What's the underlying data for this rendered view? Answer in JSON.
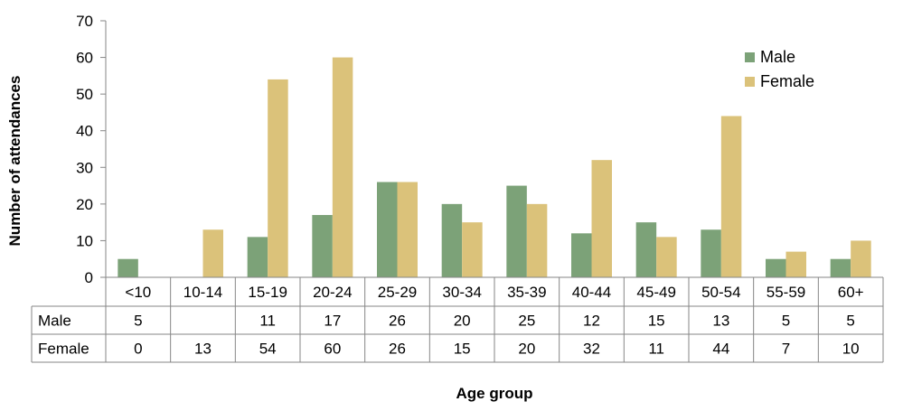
{
  "chart_data": {
    "type": "bar",
    "categories": [
      "<10",
      "10-14",
      "15-19",
      "20-24",
      "25-29",
      "30-34",
      "35-39",
      "40-44",
      "45-49",
      "50-54",
      "55-59",
      "60+"
    ],
    "series": [
      {
        "name": "Male",
        "values": [
          5,
          null,
          11,
          17,
          26,
          20,
          25,
          12,
          15,
          13,
          5,
          5
        ],
        "table_values": [
          "5",
          "",
          "11",
          "17",
          "26",
          "20",
          "25",
          "12",
          "15",
          "13",
          "5",
          "5"
        ],
        "color": "#7ca278"
      },
      {
        "name": "Female",
        "values": [
          0,
          13,
          54,
          60,
          26,
          15,
          20,
          32,
          11,
          44,
          7,
          10
        ],
        "table_values": [
          "0",
          "13",
          "54",
          "60",
          "26",
          "15",
          "20",
          "32",
          "11",
          "44",
          "7",
          "10"
        ],
        "color": "#dbc27a"
      }
    ],
    "xlabel": "Age group",
    "ylabel": "Number of attendances",
    "ylim": [
      0,
      70
    ],
    "yticks": [
      0,
      10,
      20,
      30,
      40,
      50,
      60,
      70
    ],
    "grid": false,
    "legend": "top-right",
    "data_table": true
  }
}
